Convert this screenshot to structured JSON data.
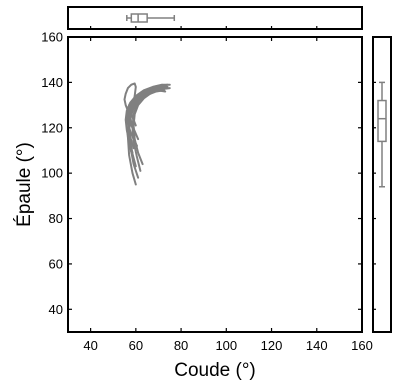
{
  "chart_data": {
    "type": "line",
    "title": "",
    "xlabel": "Coude (°)",
    "ylabel": "Épaule (°)",
    "xlim": [
      30,
      160
    ],
    "ylim": [
      30,
      160
    ],
    "xticks": [
      40,
      60,
      80,
      100,
      120,
      140,
      160
    ],
    "yticks": [
      40,
      60,
      80,
      100,
      120,
      140,
      160
    ],
    "grid": false,
    "legend": "none",
    "line_color": "#808080",
    "series": [
      {
        "x": [
          60,
          58.5,
          57,
          56.5,
          57,
          58,
          60,
          63,
          67,
          71,
          74
        ],
        "y": [
          95,
          100,
          108,
          116,
          123,
          128,
          132,
          135,
          137,
          138.5,
          139
        ]
      },
      {
        "x": [
          61,
          59,
          57.5,
          57,
          57.5,
          59,
          61.5,
          65,
          69,
          73
        ],
        "y": [
          98,
          104,
          112,
          119,
          125,
          129,
          133,
          135.5,
          137,
          138
        ]
      },
      {
        "x": [
          59,
          57.5,
          56.5,
          56,
          56.5,
          58,
          60.5,
          64,
          68,
          72,
          75
        ],
        "y": [
          106,
          111,
          116,
          121,
          126,
          130,
          133.5,
          136,
          138,
          139,
          139
        ]
      },
      {
        "x": [
          60.5,
          58.5,
          57,
          56.5,
          57,
          59,
          62,
          66,
          70,
          74
        ],
        "y": [
          112,
          116,
          120,
          124,
          128,
          131,
          134,
          136,
          137.5,
          138
        ]
      },
      {
        "x": [
          59.5,
          58,
          57,
          56.5,
          57,
          58.5,
          61,
          64,
          68,
          72
        ],
        "y": [
          118,
          121,
          124,
          127,
          130,
          132,
          134,
          135.5,
          136.5,
          137
        ]
      },
      {
        "x": [
          62,
          60.5,
          59,
          58.5,
          59,
          60.5,
          63,
          66.5,
          70
        ],
        "y": [
          101,
          107,
          114,
          120,
          126,
          130.5,
          134,
          136.5,
          138
        ]
      },
      {
        "x": [
          58.5,
          57,
          56,
          55.5,
          56,
          57.5,
          60,
          63.5,
          67.5,
          71.5
        ],
        "y": [
          109,
          114,
          119,
          123.5,
          127.5,
          131,
          134,
          136.5,
          138,
          139
        ]
      },
      {
        "x": [
          61,
          59.5,
          58,
          57.5,
          58,
          59.5,
          62,
          65.5,
          69.5,
          73.5
        ],
        "y": [
          115,
          118.5,
          122,
          125.5,
          129,
          132,
          134.5,
          136.5,
          138,
          138.5
        ]
      },
      {
        "x": [
          60,
          59,
          58,
          57.5,
          58,
          59.5,
          62,
          65,
          68.5
        ],
        "y": [
          121,
          123.5,
          126,
          128.5,
          131,
          133,
          135,
          136.5,
          137.5
        ]
      },
      {
        "x": [
          63,
          61,
          59.5,
          59,
          59.5,
          61,
          63.5,
          67,
          71,
          75
        ],
        "y": [
          104,
          109,
          115,
          121,
          126,
          130,
          133,
          135.5,
          137,
          137.5
        ]
      },
      {
        "x": [
          58,
          56.5,
          55.5,
          55,
          55.5,
          56.5,
          58,
          59.5,
          60,
          59.5,
          58.5,
          57.5
        ],
        "y": [
          125,
          127.5,
          130,
          132.5,
          135,
          137.5,
          139,
          139.5,
          138,
          134,
          129,
          125
        ]
      },
      {
        "x": [
          59,
          57.5,
          57,
          57.5,
          59,
          62,
          65.5,
          69.5,
          73
        ],
        "y": [
          111,
          116,
          121,
          126,
          130,
          133.5,
          135.5,
          136.5,
          136
        ]
      },
      {
        "x": [
          60,
          58.5,
          57.5,
          57,
          57.5,
          59,
          61.5,
          65,
          69,
          72.5
        ],
        "y": [
          103,
          108.5,
          114,
          119.5,
          124.5,
          128.5,
          132,
          134.5,
          136,
          136.5
        ]
      }
    ],
    "marginal_x": {
      "orientation": "horizontal",
      "whisker_low": 56,
      "q1": 58,
      "median": 61,
      "q3": 65,
      "whisker_high": 77
    },
    "marginal_y": {
      "orientation": "vertical",
      "whisker_low": 94,
      "q1": 114,
      "median": 124,
      "q3": 132,
      "whisker_high": 140
    }
  }
}
